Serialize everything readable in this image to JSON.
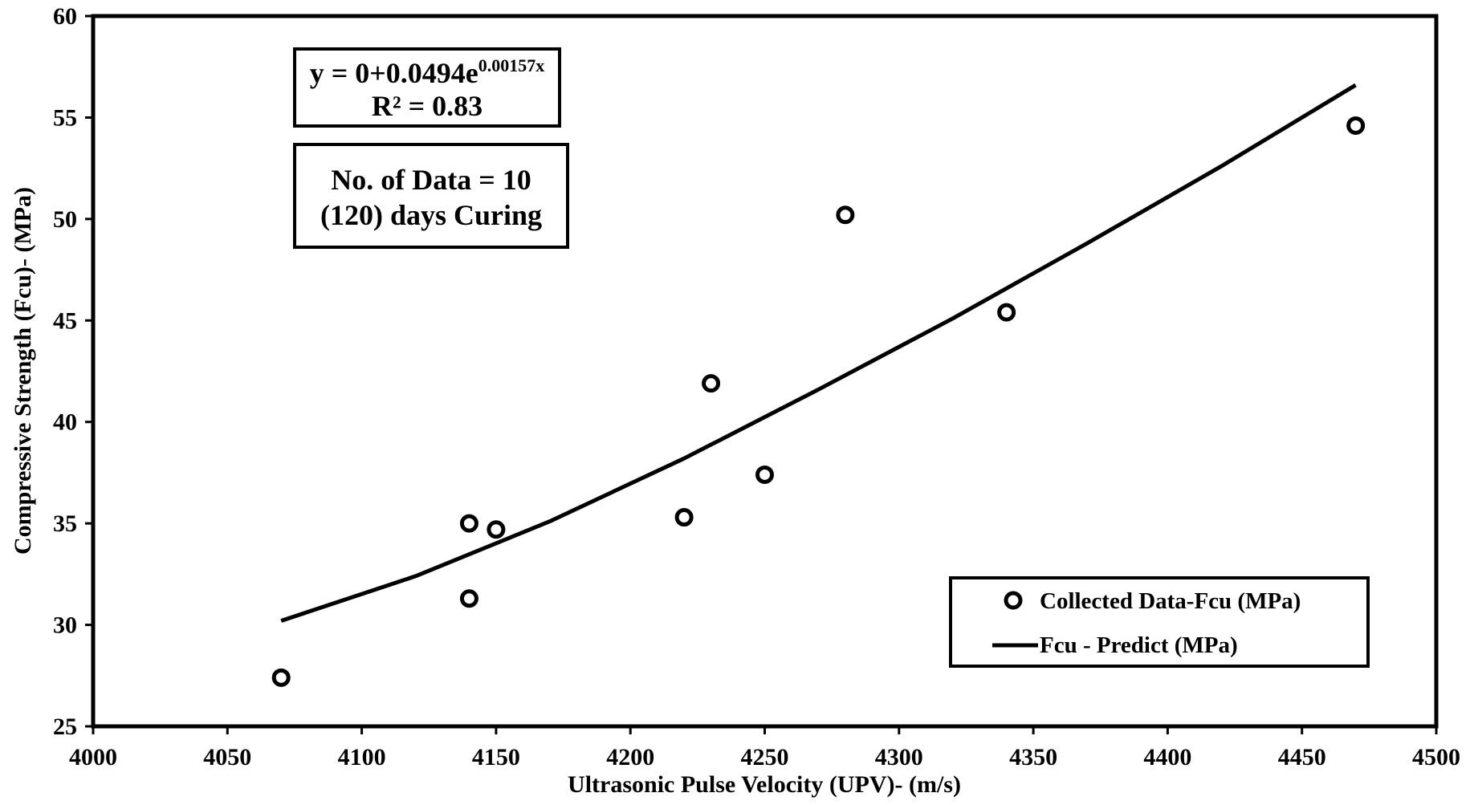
{
  "chart_data": {
    "type": "scatter",
    "xlabel": "Ultrasonic Pulse Velocity (UPV)- (m/s)",
    "ylabel": "Compressive Strength (Fcu)- (MPa)",
    "xlim": [
      4000,
      4500
    ],
    "ylim": [
      25,
      60
    ],
    "x_ticks": [
      4000,
      4050,
      4100,
      4150,
      4200,
      4250,
      4300,
      4350,
      4400,
      4450,
      4500
    ],
    "y_ticks": [
      25,
      30,
      35,
      40,
      45,
      50,
      55,
      60
    ],
    "grid": false,
    "legend_position": "bottom-right",
    "series": [
      {
        "name": "Collected Data-Fcu (MPa)",
        "kind": "scatter",
        "marker": "open-circle",
        "x": [
          4070,
          4140,
          4140,
          4150,
          4220,
          4230,
          4250,
          4280,
          4340,
          4470
        ],
        "y": [
          27.4,
          35.0,
          31.3,
          34.7,
          35.3,
          41.9,
          37.4,
          50.2,
          45.4,
          54.6
        ]
      },
      {
        "name": "Fcu - Predict (MPa)",
        "kind": "line",
        "x_range": [
          4070,
          4470
        ],
        "x": [
          4070,
          4120,
          4170,
          4220,
          4270,
          4320,
          4370,
          4420,
          4470
        ],
        "y": [
          30.2,
          32.4,
          35.1,
          38.2,
          41.6,
          45.1,
          48.8,
          52.6,
          56.6
        ]
      }
    ],
    "annotations": {
      "equation_prefix": "y = 0+0.0494e",
      "equation_exponent": "0.00157x",
      "r_squared": "R² = 0.83",
      "data_count": "No. of Data = 10",
      "curing": "(120) days Curing"
    }
  }
}
